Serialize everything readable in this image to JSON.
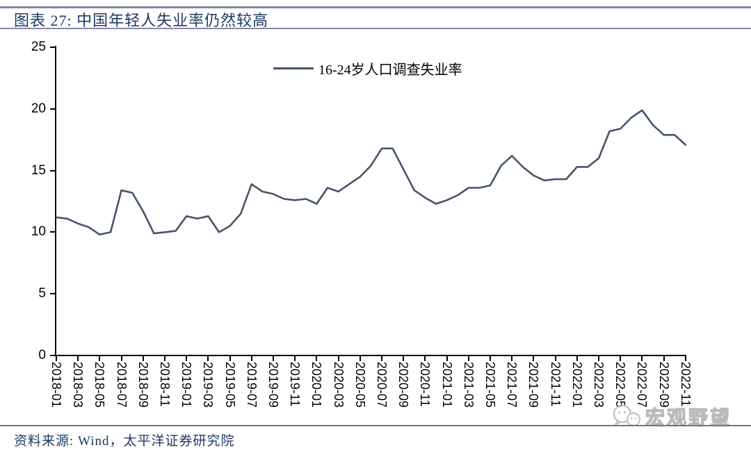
{
  "header": {
    "title": "图表 27:  中国年轻人失业率仍然较高"
  },
  "legend": {
    "label": "16-24岁人口调查失业率"
  },
  "footer": {
    "source": "资料来源:  Wind，太平洋证券研究院"
  },
  "watermark": {
    "text": "宏观野望"
  },
  "colors": {
    "series_line": "#44546A",
    "title_text": "#1F3864",
    "header_rules": "#8787a9",
    "axis": "#000000",
    "watermark_gray": "#b3b3b3"
  },
  "chart_data": {
    "type": "line",
    "title": "图表 27: 中国年轻人失业率仍然较高",
    "series_name": "16-24岁人口调查失业率",
    "xlabel": "",
    "ylabel": "",
    "ylim": [
      0,
      25
    ],
    "yticks": [
      0,
      5,
      10,
      15,
      20,
      25
    ],
    "grid": false,
    "legend_position": "top-center",
    "x_tick_step_months": 2,
    "x": [
      "2018-01",
      "2018-02",
      "2018-03",
      "2018-04",
      "2018-05",
      "2018-06",
      "2018-07",
      "2018-08",
      "2018-09",
      "2018-10",
      "2018-11",
      "2018-12",
      "2019-01",
      "2019-02",
      "2019-03",
      "2019-04",
      "2019-05",
      "2019-06",
      "2019-07",
      "2019-08",
      "2019-09",
      "2019-10",
      "2019-11",
      "2019-12",
      "2020-01",
      "2020-02",
      "2020-03",
      "2020-04",
      "2020-05",
      "2020-06",
      "2020-07",
      "2020-08",
      "2020-09",
      "2020-10",
      "2020-11",
      "2020-12",
      "2021-01",
      "2021-02",
      "2021-03",
      "2021-04",
      "2021-05",
      "2021-06",
      "2021-07",
      "2021-08",
      "2021-09",
      "2021-10",
      "2021-11",
      "2021-12",
      "2022-01",
      "2022-02",
      "2022-03",
      "2022-04",
      "2022-05",
      "2022-06",
      "2022-07",
      "2022-08",
      "2022-09",
      "2022-10",
      "2022-11"
    ],
    "values": [
      11.2,
      11.1,
      10.7,
      10.4,
      9.8,
      10.0,
      13.4,
      13.2,
      11.7,
      9.9,
      10.0,
      10.1,
      11.3,
      11.1,
      11.3,
      10.0,
      10.5,
      11.5,
      13.9,
      13.3,
      13.1,
      12.7,
      12.6,
      12.7,
      12.3,
      13.6,
      13.3,
      13.9,
      14.5,
      15.4,
      16.8,
      16.8,
      15.1,
      13.4,
      12.8,
      12.3,
      12.6,
      13.0,
      13.6,
      13.6,
      13.8,
      15.4,
      16.2,
      15.3,
      14.6,
      14.2,
      14.3,
      14.3,
      15.3,
      15.3,
      16.0,
      18.2,
      18.4,
      19.3,
      19.9,
      18.7,
      17.9,
      17.9,
      17.1
    ]
  }
}
